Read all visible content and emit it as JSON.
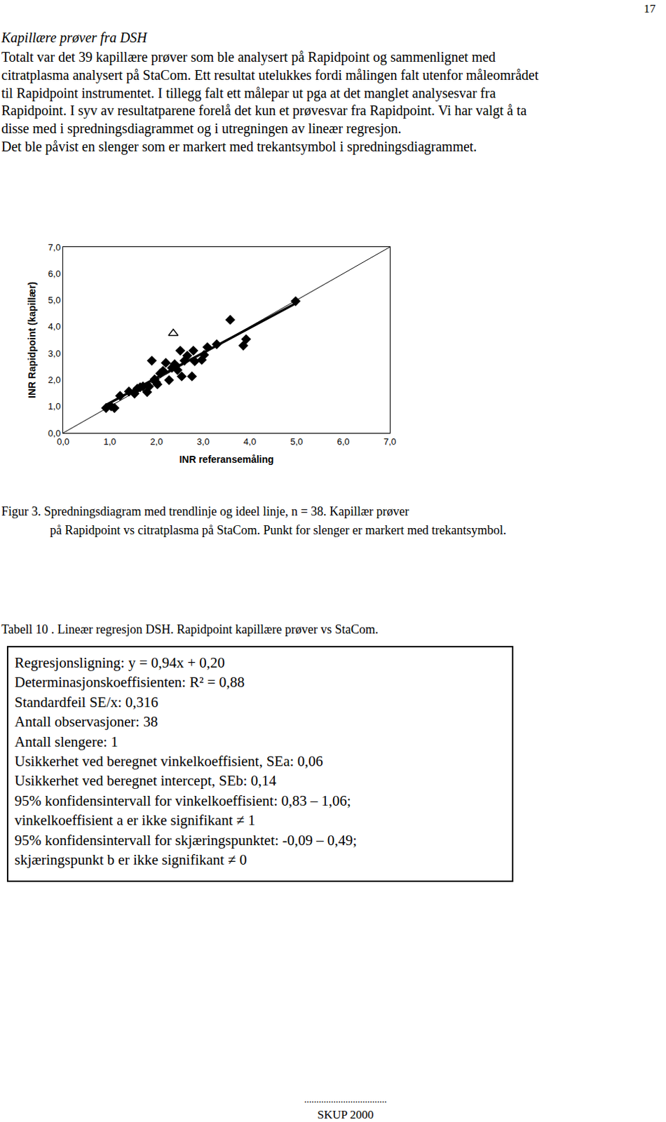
{
  "page_number": "17",
  "heading": "Kapillære prøver fra DSH",
  "paragraph_lines": [
    "Totalt var det 39 kapillære prøver som ble analysert på Rapidpoint og sammenlignet med",
    "citratplasma analysert på StaCom. Ett resultat utelukkes fordi målingen falt utenfor måleområdet",
    "til Rapidpoint instrumentet. I tillegg falt ett målepar ut pga at det manglet analysesvar fra",
    "Rapidpoint. I syv av resultatparene forelå det kun et prøvesvar fra Rapidpoint. Vi har valgt å ta",
    "disse med i spredningsdiagrammet og i utregningen av lineær regresjon.",
    "Det ble påvist en slenger som er markert med trekantsymbol i spredningsdiagrammet."
  ],
  "chart_data": {
    "type": "scatter",
    "xlabel": "INR referansemåling",
    "ylabel": "INR Rapidpoint (kapillær)",
    "xlim": [
      0,
      7
    ],
    "ylim": [
      0,
      7
    ],
    "xticks": [
      {
        "value": 0,
        "label": "0,0"
      },
      {
        "value": 1,
        "label": "1,0"
      },
      {
        "value": 2,
        "label": "2,0"
      },
      {
        "value": 3,
        "label": "3,0"
      },
      {
        "value": 4,
        "label": "4,0"
      },
      {
        "value": 5,
        "label": "5,0"
      },
      {
        "value": 6,
        "label": "6,0"
      },
      {
        "value": 7,
        "label": "7,0"
      }
    ],
    "yticks": [
      {
        "value": 0,
        "label": "0,0"
      },
      {
        "value": 1,
        "label": "1,0"
      },
      {
        "value": 2,
        "label": "2,0"
      },
      {
        "value": 3,
        "label": "3,0"
      },
      {
        "value": 4,
        "label": "4,0"
      },
      {
        "value": 5,
        "label": "5,0"
      },
      {
        "value": 6,
        "label": "6,0"
      },
      {
        "value": 7,
        "label": "7,0"
      }
    ],
    "grid": false,
    "series": [
      {
        "type": "line",
        "line_style": "thin",
        "color": "#000000",
        "x": [
          0,
          7
        ],
        "y": [
          0,
          7
        ]
      },
      {
        "type": "line",
        "line_style": "thick",
        "color": "#000000",
        "x": [
          0.92,
          4.98
        ],
        "y": [
          1.06,
          4.88
        ]
      },
      {
        "type": "scatter",
        "marker": "diamond",
        "color": "#000000",
        "x": [
          0.92,
          1.03,
          1.1,
          1.22,
          1.41,
          1.53,
          1.59,
          1.65,
          1.71,
          1.8,
          1.84,
          1.9,
          1.96,
          1.99,
          2.02,
          2.08,
          2.14,
          2.2,
          2.27,
          2.33,
          2.39,
          2.45,
          2.51,
          2.54,
          2.6,
          2.66,
          2.76,
          2.79,
          2.82,
          2.97,
          3.02,
          3.09,
          3.29,
          3.58,
          3.86,
          3.92,
          4.98
        ],
        "y": [
          0.94,
          1.0,
          0.94,
          1.4,
          1.56,
          1.48,
          1.67,
          1.72,
          1.75,
          1.54,
          1.75,
          2.72,
          2.02,
          1.91,
          1.83,
          2.24,
          2.34,
          2.64,
          1.99,
          2.45,
          2.59,
          2.37,
          3.1,
          2.13,
          2.72,
          2.91,
          2.13,
          3.1,
          2.7,
          2.75,
          2.94,
          3.23,
          3.34,
          4.26,
          3.29,
          3.53,
          4.96
        ]
      },
      {
        "type": "scatter",
        "marker": "triangle-open",
        "color": "#000000",
        "x": [
          2.36
        ],
        "y": [
          3.75
        ]
      }
    ]
  },
  "figure_caption": [
    "Figur 3.  Spredningsdiagram med trendlinje og ideel linje, n = 38. Kapillær prøver",
    "på Rapidpoint vs citratplasma på StaCom. Punkt for slenger er markert med trekantsymbol."
  ],
  "table_caption": "Tabell 10 . Lineær regresjon DSH. Rapidpoint kapillære prøver vs StaCom.",
  "table_box_lines": [
    "Regresjonsligning: y = 0,94x + 0,20",
    "Determinasjonskoeffisienten: R² =  0,88",
    "Standardfeil SE/x: 0,316",
    "Antall observasjoner: 38",
    "Antall slengere: 1",
    "Usikkerhet ved beregnet vinkelkoeffisient, SEa: 0,06",
    "Usikkerhet ved beregnet intercept, SEb: 0,14",
    "95% konfidensintervall for vinkelkoeffisient: 0,83 – 1,06;",
    "vinkelkoeffisient a er ikke signifikant ≠ 1",
    "95% konfidensintervall for skjæringspunktet: -0,09 – 0,49;",
    "skjæringspunkt b er ikke signifikant ≠ 0"
  ],
  "footer": {
    "dots": "..................................",
    "text": "SKUP 2000"
  }
}
